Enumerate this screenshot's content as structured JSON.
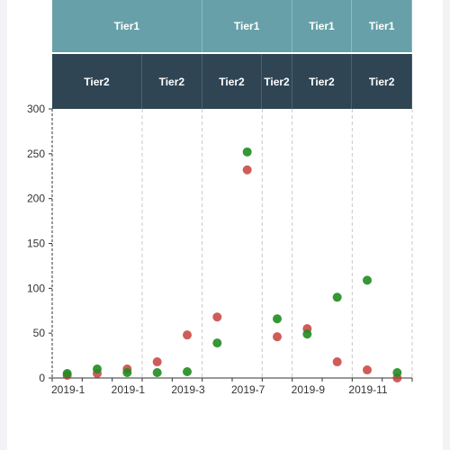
{
  "header": {
    "tier1": [
      {
        "label": "Tier1",
        "from": 0,
        "to": 5
      },
      {
        "label": "Tier1",
        "from": 5,
        "to": 8
      },
      {
        "label": "Tier1",
        "from": 8,
        "to": 10
      },
      {
        "label": "Tier1",
        "from": 10,
        "to": 12
      }
    ],
    "tier2": [
      {
        "label": "Tier2",
        "from": 0,
        "to": 3
      },
      {
        "label": "Tier2",
        "from": 3,
        "to": 5
      },
      {
        "label": "Tier2",
        "from": 5,
        "to": 7
      },
      {
        "label": "Tier2",
        "from": 7,
        "to": 8
      },
      {
        "label": "Tier2",
        "from": 8,
        "to": 10
      },
      {
        "label": "Tier2",
        "from": 10,
        "to": 12
      }
    ]
  },
  "chart_data": {
    "type": "scatter",
    "title": "",
    "xlabel": "",
    "ylabel": "",
    "ylim": [
      0,
      300
    ],
    "yticks": [
      0,
      50,
      100,
      150,
      200,
      250,
      300
    ],
    "x_tick_labels": [
      "2019-1",
      "2019-1",
      "2019-3",
      "2019-7",
      "2019-9",
      "2019-11"
    ],
    "grid": false,
    "dashed_group_dividers": true,
    "categories": 12,
    "colors": {
      "red": "#c23531",
      "green": "#1f8c1f"
    },
    "series": [
      {
        "color": "#c23531",
        "values": [
          3,
          5,
          10,
          18,
          48,
          68,
          232,
          46,
          55,
          18,
          9,
          0
        ]
      },
      {
        "color": "#1f8c1f",
        "values": [
          5,
          10,
          6,
          6,
          7,
          39,
          252,
          66,
          49,
          90,
          109,
          6
        ]
      }
    ]
  }
}
